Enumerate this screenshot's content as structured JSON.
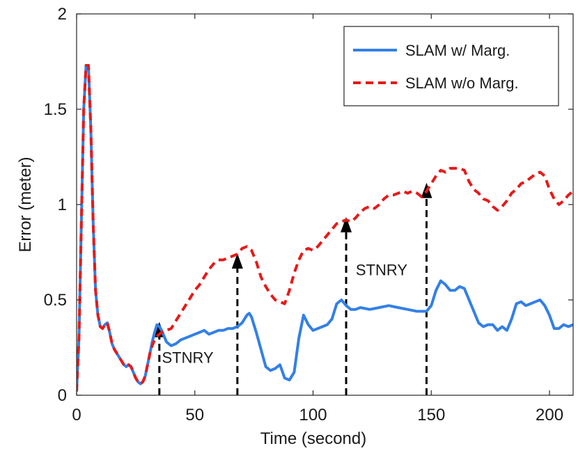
{
  "chart_data": {
    "type": "line",
    "title": "",
    "xlabel": "Time (second)",
    "ylabel": "Error (meter)",
    "xlim": [
      0,
      210
    ],
    "ylim": [
      0,
      2
    ],
    "xticks": [
      0,
      50,
      100,
      150,
      200
    ],
    "yticks": [
      0,
      0.5,
      1,
      1.5,
      2
    ],
    "ytick_labels": [
      "0",
      "0.5",
      "1",
      "1.5",
      "2"
    ],
    "grid": false,
    "legend_position": "top-right",
    "series": [
      {
        "name": "SLAM w/ Marg.",
        "color": "#3380e6",
        "style": "solid",
        "x": [
          0,
          1,
          2,
          3,
          4,
          5,
          6,
          7,
          8,
          9,
          10,
          11,
          12,
          13,
          14,
          15,
          16,
          17,
          18,
          19,
          20,
          21,
          22,
          23,
          24,
          25,
          26,
          27,
          28,
          29,
          30,
          31,
          32,
          33,
          34,
          35,
          36,
          37,
          38,
          40,
          42,
          44,
          46,
          48,
          50,
          52,
          54,
          56,
          58,
          60,
          62,
          64,
          66,
          68,
          70,
          72,
          73,
          74,
          76,
          78,
          80,
          82,
          84,
          86,
          88,
          90,
          92,
          94,
          96,
          98,
          100,
          102,
          104,
          106,
          108,
          110,
          112,
          114,
          116,
          118,
          120,
          124,
          128,
          132,
          136,
          140,
          144,
          148,
          150,
          152,
          154,
          156,
          158,
          160,
          162,
          164,
          166,
          168,
          170,
          172,
          174,
          176,
          178,
          180,
          182,
          184,
          186,
          188,
          190,
          192,
          194,
          196,
          198,
          200,
          202,
          204,
          206,
          208,
          210
        ],
        "y": [
          0.02,
          0.3,
          0.9,
          1.5,
          1.73,
          1.73,
          1.4,
          0.9,
          0.55,
          0.42,
          0.36,
          0.35,
          0.37,
          0.38,
          0.33,
          0.27,
          0.24,
          0.22,
          0.2,
          0.18,
          0.16,
          0.15,
          0.16,
          0.15,
          0.12,
          0.09,
          0.07,
          0.06,
          0.07,
          0.1,
          0.16,
          0.22,
          0.28,
          0.33,
          0.37,
          0.36,
          0.34,
          0.31,
          0.28,
          0.26,
          0.27,
          0.29,
          0.3,
          0.31,
          0.32,
          0.33,
          0.34,
          0.32,
          0.33,
          0.34,
          0.34,
          0.35,
          0.35,
          0.36,
          0.38,
          0.42,
          0.43,
          0.41,
          0.33,
          0.24,
          0.15,
          0.13,
          0.14,
          0.16,
          0.09,
          0.08,
          0.12,
          0.3,
          0.42,
          0.37,
          0.34,
          0.35,
          0.36,
          0.37,
          0.4,
          0.48,
          0.5,
          0.47,
          0.45,
          0.45,
          0.46,
          0.45,
          0.46,
          0.47,
          0.46,
          0.45,
          0.44,
          0.44,
          0.47,
          0.55,
          0.6,
          0.58,
          0.55,
          0.55,
          0.57,
          0.56,
          0.5,
          0.44,
          0.38,
          0.36,
          0.37,
          0.37,
          0.34,
          0.36,
          0.34,
          0.4,
          0.48,
          0.49,
          0.47,
          0.48,
          0.49,
          0.5,
          0.47,
          0.42,
          0.35,
          0.35,
          0.37,
          0.36,
          0.37
        ]
      },
      {
        "name": "SLAM w/o Marg.",
        "color": "#e61a1a",
        "style": "dashed",
        "x": [
          0,
          1,
          2,
          3,
          4,
          5,
          6,
          7,
          8,
          9,
          10,
          11,
          12,
          13,
          14,
          15,
          16,
          17,
          18,
          19,
          20,
          21,
          22,
          23,
          24,
          25,
          26,
          27,
          28,
          29,
          30,
          31,
          32,
          33,
          34,
          35,
          36,
          38,
          40,
          42,
          44,
          46,
          48,
          50,
          52,
          54,
          56,
          58,
          60,
          62,
          64,
          66,
          68,
          70,
          72,
          74,
          76,
          78,
          80,
          82,
          84,
          86,
          88,
          90,
          92,
          94,
          96,
          98,
          100,
          102,
          104,
          106,
          108,
          110,
          112,
          114,
          116,
          118,
          120,
          122,
          124,
          126,
          128,
          130,
          132,
          134,
          136,
          138,
          140,
          142,
          144,
          146,
          148,
          150,
          152,
          154,
          156,
          158,
          160,
          162,
          164,
          166,
          168,
          170,
          172,
          174,
          176,
          178,
          180,
          182,
          184,
          186,
          188,
          190,
          192,
          194,
          196,
          198,
          200,
          202,
          204,
          206,
          208,
          210
        ],
        "y": [
          0.02,
          0.3,
          0.9,
          1.5,
          1.73,
          1.73,
          1.4,
          0.9,
          0.55,
          0.42,
          0.36,
          0.35,
          0.37,
          0.38,
          0.33,
          0.27,
          0.24,
          0.22,
          0.2,
          0.18,
          0.16,
          0.15,
          0.16,
          0.15,
          0.12,
          0.09,
          0.07,
          0.06,
          0.07,
          0.1,
          0.16,
          0.22,
          0.26,
          0.29,
          0.31,
          0.32,
          0.33,
          0.34,
          0.35,
          0.39,
          0.43,
          0.47,
          0.51,
          0.55,
          0.58,
          0.62,
          0.66,
          0.69,
          0.71,
          0.71,
          0.72,
          0.73,
          0.74,
          0.77,
          0.78,
          0.76,
          0.7,
          0.62,
          0.57,
          0.53,
          0.5,
          0.49,
          0.48,
          0.55,
          0.64,
          0.71,
          0.76,
          0.77,
          0.76,
          0.78,
          0.81,
          0.84,
          0.87,
          0.9,
          0.91,
          0.92,
          0.91,
          0.93,
          0.96,
          0.98,
          0.99,
          0.98,
          1.0,
          1.03,
          1.05,
          1.05,
          1.06,
          1.07,
          1.06,
          1.07,
          1.06,
          1.04,
          1.07,
          1.11,
          1.15,
          1.18,
          1.17,
          1.19,
          1.19,
          1.19,
          1.18,
          1.12,
          1.08,
          1.06,
          1.03,
          1.02,
          0.99,
          0.97,
          0.99,
          1.02,
          1.06,
          1.08,
          1.11,
          1.12,
          1.14,
          1.16,
          1.17,
          1.15,
          1.08,
          1.03,
          1.0,
          1.02,
          1.05,
          1.07
        ]
      }
    ],
    "annotations": [
      {
        "text": "STNRY",
        "x": 47,
        "y": 0.17
      },
      {
        "text": "STNRY",
        "x": 129,
        "y": 0.63
      }
    ],
    "arrows": [
      {
        "x": 35,
        "y_from": 0,
        "y_to": 0.37
      },
      {
        "x": 68,
        "y_from": 0,
        "y_to": 0.73
      },
      {
        "x": 114,
        "y_from": 0,
        "y_to": 0.92
      },
      {
        "x": 148,
        "y_from": 0,
        "y_to": 1.1
      }
    ]
  }
}
